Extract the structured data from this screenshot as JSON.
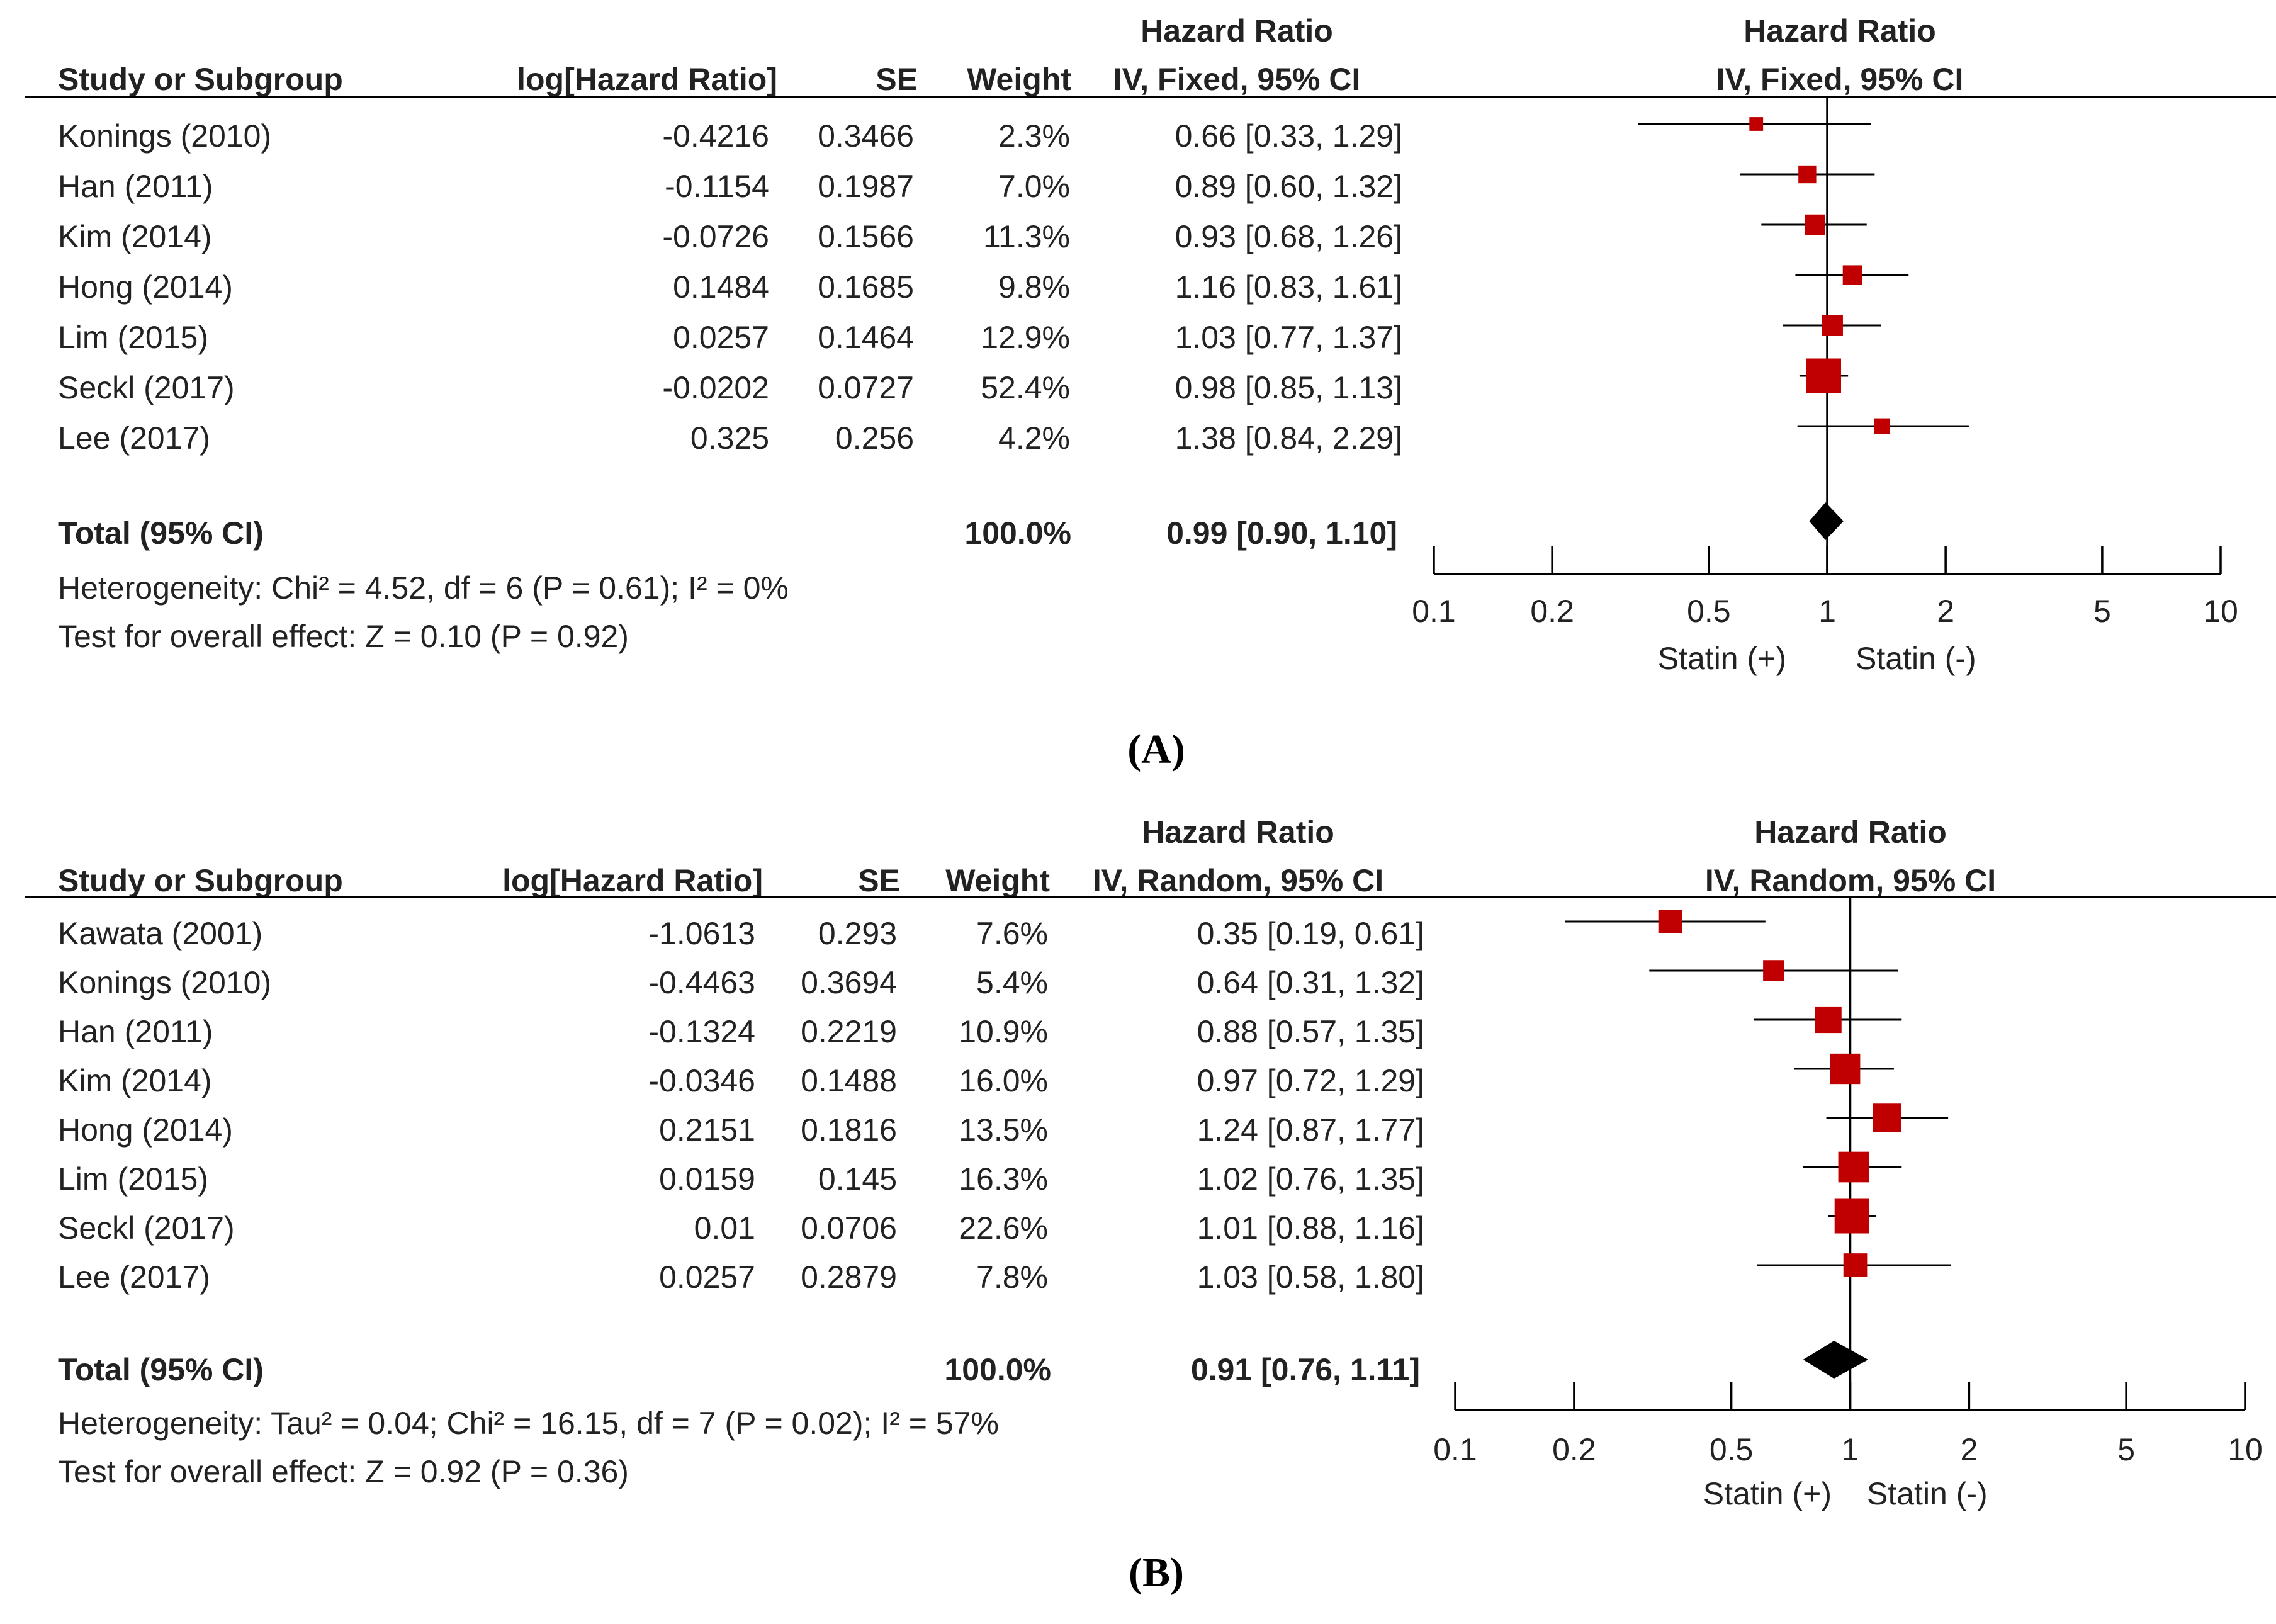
{
  "chart_data": [
    {
      "type": "forest",
      "panel_label": "(A)",
      "headers": {
        "study": "Study or Subgroup",
        "loghr": "log[Hazard Ratio]",
        "se": "SE",
        "weight": "Weight",
        "hr_title": "Hazard Ratio",
        "hr_method": "IV, Fixed, 95% CI",
        "plot_title": "Hazard Ratio",
        "plot_method": "IV, Fixed, 95% CI"
      },
      "studies": [
        {
          "name": "Konings (2010)",
          "loghr": "-0.4216",
          "se": "0.3466",
          "weight": "2.3%",
          "ci_text": "0.66 [0.33, 1.29]",
          "hr": 0.66,
          "lo": 0.33,
          "hi": 1.29,
          "w": 2.3
        },
        {
          "name": "Han (2011)",
          "loghr": "-0.1154",
          "se": "0.1987",
          "weight": "7.0%",
          "ci_text": "0.89 [0.60, 1.32]",
          "hr": 0.89,
          "lo": 0.6,
          "hi": 1.32,
          "w": 7.0
        },
        {
          "name": "Kim (2014)",
          "loghr": "-0.0726",
          "se": "0.1566",
          "weight": "11.3%",
          "ci_text": "0.93 [0.68, 1.26]",
          "hr": 0.93,
          "lo": 0.68,
          "hi": 1.26,
          "w": 11.3
        },
        {
          "name": "Hong (2014)",
          "loghr": "0.1484",
          "se": "0.1685",
          "weight": "9.8%",
          "ci_text": "1.16 [0.83, 1.61]",
          "hr": 1.16,
          "lo": 0.83,
          "hi": 1.61,
          "w": 9.8
        },
        {
          "name": "Lim (2015)",
          "loghr": "0.0257",
          "se": "0.1464",
          "weight": "12.9%",
          "ci_text": "1.03 [0.77, 1.37]",
          "hr": 1.03,
          "lo": 0.77,
          "hi": 1.37,
          "w": 12.9
        },
        {
          "name": "Seckl (2017)",
          "loghr": "-0.0202",
          "se": "0.0727",
          "weight": "52.4%",
          "ci_text": "0.98 [0.85, 1.13]",
          "hr": 0.98,
          "lo": 0.85,
          "hi": 1.13,
          "w": 52.4
        },
        {
          "name": "Lee (2017)",
          "loghr": "0.325",
          "se": "0.256",
          "weight": "4.2%",
          "ci_text": "1.38 [0.84, 2.29]",
          "hr": 1.38,
          "lo": 0.84,
          "hi": 2.29,
          "w": 4.2
        }
      ],
      "total": {
        "label": "Total (95% CI)",
        "weight": "100.0%",
        "ci_text": "0.99 [0.90, 1.10]",
        "hr": 0.99,
        "lo": 0.9,
        "hi": 1.1
      },
      "heterogeneity": "Heterogeneity: Chi² = 4.52, df = 6 (P = 0.61); I² = 0%",
      "overall": "Test for overall effect: Z = 0.10 (P = 0.92)",
      "x_axis": {
        "scale": "log",
        "ticks": [
          0.1,
          0.2,
          0.5,
          1,
          2,
          5,
          10
        ],
        "tick_labels": [
          "0.1",
          "0.2",
          "0.5",
          "1",
          "2",
          "5",
          "10"
        ],
        "xlim": [
          0.1,
          10
        ]
      },
      "favours_left": "Statin (+)",
      "favours_right": "Statin (-)",
      "colors": {
        "square": "#c00000",
        "line": "#000000",
        "text": "#222222"
      }
    },
    {
      "type": "forest",
      "panel_label": "(B)",
      "headers": {
        "study": "Study or Subgroup",
        "loghr": "log[Hazard Ratio]",
        "se": "SE",
        "weight": "Weight",
        "hr_title": "Hazard Ratio",
        "hr_method": "IV, Random, 95% CI",
        "plot_title": "Hazard Ratio",
        "plot_method": "IV, Random, 95% CI"
      },
      "studies": [
        {
          "name": "Kawata (2001)",
          "loghr": "-1.0613",
          "se": "0.293",
          "weight": "7.6%",
          "ci_text": "0.35 [0.19, 0.61]",
          "hr": 0.35,
          "lo": 0.19,
          "hi": 0.61,
          "w": 7.6
        },
        {
          "name": "Konings (2010)",
          "loghr": "-0.4463",
          "se": "0.3694",
          "weight": "5.4%",
          "ci_text": "0.64 [0.31, 1.32]",
          "hr": 0.64,
          "lo": 0.31,
          "hi": 1.32,
          "w": 5.4
        },
        {
          "name": "Han (2011)",
          "loghr": "-0.1324",
          "se": "0.2219",
          "weight": "10.9%",
          "ci_text": "0.88 [0.57, 1.35]",
          "hr": 0.88,
          "lo": 0.57,
          "hi": 1.35,
          "w": 10.9
        },
        {
          "name": "Kim (2014)",
          "loghr": "-0.0346",
          "se": "0.1488",
          "weight": "16.0%",
          "ci_text": "0.97 [0.72, 1.29]",
          "hr": 0.97,
          "lo": 0.72,
          "hi": 1.29,
          "w": 16.0
        },
        {
          "name": "Hong (2014)",
          "loghr": "0.2151",
          "se": "0.1816",
          "weight": "13.5%",
          "ci_text": "1.24 [0.87, 1.77]",
          "hr": 1.24,
          "lo": 0.87,
          "hi": 1.77,
          "w": 13.5
        },
        {
          "name": "Lim (2015)",
          "loghr": "0.0159",
          "se": "0.145",
          "weight": "16.3%",
          "ci_text": "1.02 [0.76, 1.35]",
          "hr": 1.02,
          "lo": 0.76,
          "hi": 1.35,
          "w": 16.3
        },
        {
          "name": "Seckl (2017)",
          "loghr": "0.01",
          "se": "0.0706",
          "weight": "22.6%",
          "ci_text": "1.01 [0.88, 1.16]",
          "hr": 1.01,
          "lo": 0.88,
          "hi": 1.16,
          "w": 22.6
        },
        {
          "name": "Lee (2017)",
          "loghr": "0.0257",
          "se": "0.2879",
          "weight": "7.8%",
          "ci_text": "1.03 [0.58, 1.80]",
          "hr": 1.03,
          "lo": 0.58,
          "hi": 1.8,
          "w": 7.8
        }
      ],
      "total": {
        "label": "Total (95% CI)",
        "weight": "100.0%",
        "ci_text": "0.91 [0.76, 1.11]",
        "hr": 0.91,
        "lo": 0.76,
        "hi": 1.11
      },
      "heterogeneity": "Heterogeneity: Tau² = 0.04; Chi² = 16.15, df = 7 (P = 0.02); I² = 57%",
      "overall": "Test for overall effect: Z = 0.92 (P = 0.36)",
      "x_axis": {
        "scale": "log",
        "ticks": [
          0.1,
          0.2,
          0.5,
          1,
          2,
          5,
          10
        ],
        "tick_labels": [
          "0.1",
          "0.2",
          "0.5",
          "1",
          "2",
          "5",
          "10"
        ],
        "xlim": [
          0.1,
          10
        ]
      },
      "favours_left": "Statin (+)",
      "favours_right": "Statin (-)",
      "colors": {
        "square": "#c00000",
        "line": "#000000",
        "text": "#222222"
      }
    }
  ]
}
